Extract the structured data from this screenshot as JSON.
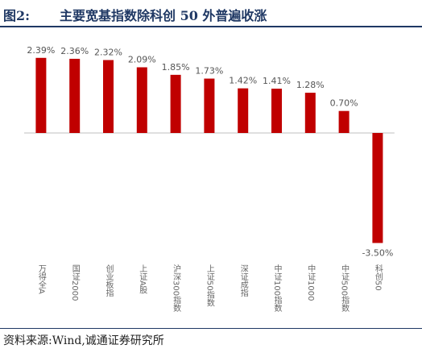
{
  "header": {
    "figure_number": "图2:",
    "title": "主要宽基指数除科创 50 外普遍收涨"
  },
  "footer": {
    "source": "资料来源:Wind,诚通证券研究所"
  },
  "colors": {
    "bar": "#c00000",
    "axis": "#bfbfbf",
    "title": "#1f3864"
  },
  "chart_data": {
    "type": "bar",
    "title": "主要宽基指数除科创 50 外普遍收涨",
    "xlabel": "",
    "ylabel": "",
    "unit": "%",
    "grid": false,
    "ylim": [
      -3.5,
      2.39
    ],
    "categories": [
      "万得全A",
      "国证2000",
      "创业板指",
      "上证A股",
      "沪深300指数",
      "上证50指数",
      "深证成指",
      "中证100指数",
      "中证1000",
      "中证500指数",
      "科创50"
    ],
    "values": [
      2.39,
      2.36,
      2.32,
      2.09,
      1.85,
      1.73,
      1.42,
      1.41,
      1.28,
      0.7,
      -3.5
    ],
    "data_labels": [
      "2.39%",
      "2.36%",
      "2.32%",
      "2.09%",
      "1.85%",
      "1.73%",
      "1.42%",
      "1.41%",
      "1.28%",
      "0.70%",
      "-3.50%"
    ]
  }
}
